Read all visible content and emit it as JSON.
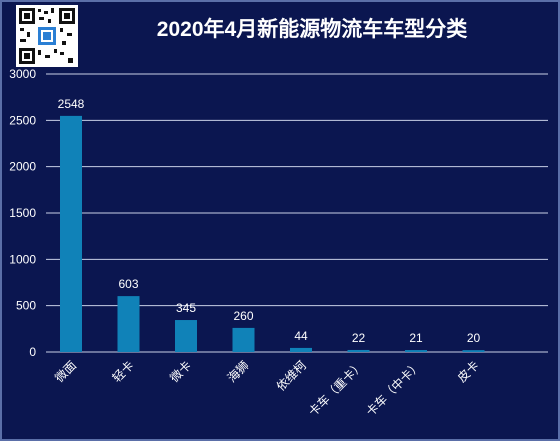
{
  "title": "2020年4月新能源物流车车型分类",
  "colors": {
    "background": "#0b1650",
    "bar": "#1082b8",
    "grid": "#c9d0e6",
    "text": "#ffffff"
  },
  "chart_data": {
    "type": "bar",
    "title": "2020年4月新能源物流车车型分类",
    "xlabel": "",
    "ylabel": "",
    "categories": [
      "微面",
      "轻卡",
      "微卡",
      "海狮",
      "依维柯",
      "卡车（重卡）",
      "卡车（中卡）",
      "皮卡"
    ],
    "values": [
      2548,
      603,
      345,
      260,
      44,
      22,
      21,
      20
    ],
    "ylim": [
      0,
      3000
    ],
    "yticks": [
      0,
      500,
      1000,
      1500,
      2000,
      2500,
      3000
    ],
    "grid": true,
    "data_labels": true
  }
}
